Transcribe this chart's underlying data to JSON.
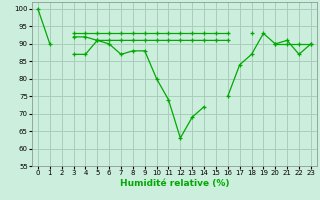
{
  "xlabel": "Humidité relative (%)",
  "background_color": "#cceedd",
  "grid_color": "#aaccbb",
  "line_color": "#00aa00",
  "xlim": [
    -0.5,
    23.5
  ],
  "ylim": [
    55,
    102
  ],
  "yticks": [
    55,
    60,
    65,
    70,
    75,
    80,
    85,
    90,
    95,
    100
  ],
  "xticks": [
    0,
    1,
    2,
    3,
    4,
    5,
    6,
    7,
    8,
    9,
    10,
    11,
    12,
    13,
    14,
    15,
    16,
    17,
    18,
    19,
    20,
    21,
    22,
    23
  ],
  "series": [
    [
      100,
      90,
      null,
      87,
      87,
      91,
      90,
      87,
      88,
      88,
      80,
      74,
      63,
      69,
      72,
      null,
      75,
      84,
      87,
      93,
      90,
      91,
      87,
      90
    ],
    [
      null,
      null,
      null,
      93,
      93,
      93,
      93,
      93,
      93,
      93,
      93,
      93,
      93,
      93,
      93,
      93,
      93,
      null,
      null,
      null,
      null,
      null,
      null,
      null
    ],
    [
      null,
      null,
      null,
      92,
      92,
      91,
      91,
      91,
      91,
      91,
      91,
      91,
      91,
      91,
      91,
      91,
      91,
      null,
      null,
      null,
      null,
      null,
      null,
      null
    ],
    [
      null,
      null,
      null,
      null,
      null,
      null,
      null,
      null,
      null,
      null,
      null,
      null,
      null,
      null,
      null,
      null,
      null,
      null,
      93,
      null,
      90,
      90,
      90,
      90
    ]
  ]
}
